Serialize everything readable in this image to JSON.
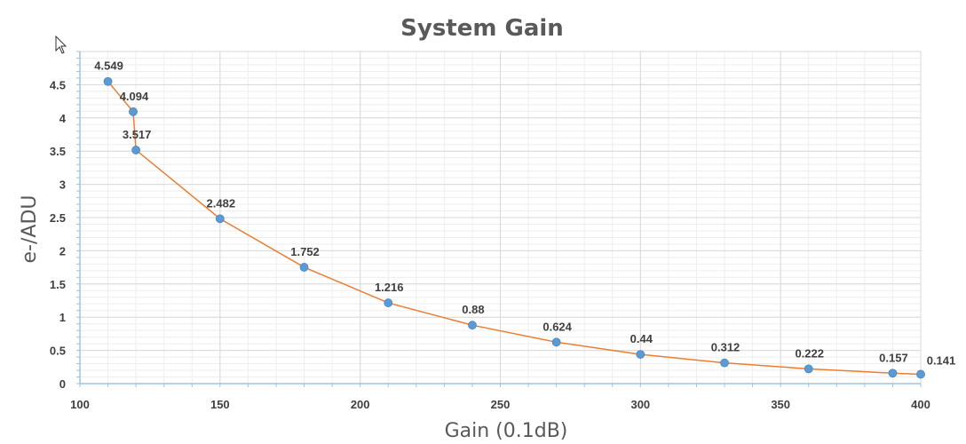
{
  "colors": {
    "line": "#ED7D31",
    "marker": "#5B9BD5",
    "grid_major": "#D9D9D9",
    "grid_minor": "#EEEEEE",
    "axis": "#9DC3E6"
  },
  "icons": {
    "cursor": "mouse-pointer-icon"
  },
  "chart_data": {
    "type": "line",
    "title": "System Gain",
    "xlabel": "Gain (0.1dB)",
    "ylabel": "e-/ADU",
    "xlim": [
      100,
      400
    ],
    "ylim": [
      0,
      5
    ],
    "x_ticks": [
      "100",
      "150",
      "200",
      "250",
      "300",
      "350",
      "400"
    ],
    "y_ticks": [
      "0",
      "0.5",
      "1",
      "1.5",
      "2",
      "2.5",
      "3",
      "3.5",
      "4",
      "4.5"
    ],
    "grid": true,
    "legend": "none",
    "series": [
      {
        "x": [
          110,
          119,
          120,
          150,
          180,
          210,
          240,
          270,
          300,
          330,
          360,
          390,
          400
        ],
        "y": [
          4.549,
          4.094,
          3.517,
          2.482,
          1.752,
          1.216,
          0.88,
          0.624,
          0.44,
          0.312,
          0.222,
          0.157,
          0.141
        ],
        "labels": [
          "4.549",
          "4.094",
          "3.517",
          "2.482",
          "1.752",
          "1.216",
          "0.88",
          "0.624",
          "0.44",
          "0.312",
          "0.222",
          "0.157",
          "0.141"
        ]
      }
    ]
  }
}
